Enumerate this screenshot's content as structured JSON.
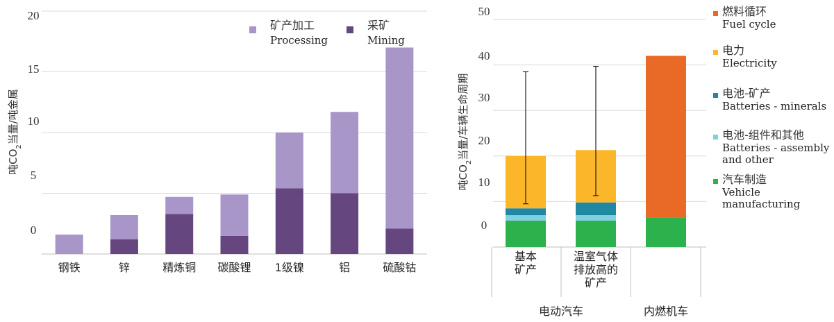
{
  "chart_data": [
    {
      "type": "bar",
      "stacked": true,
      "title": "",
      "xlabel": "",
      "ylabel": "吨CO2当量/吨金属",
      "ylabel_parts": {
        "pre": "吨CO",
        "sub": "2",
        "post": "当量/吨金属"
      },
      "yticks": [
        "20",
        "15",
        "10",
        "5",
        "0"
      ],
      "ylim": [
        0,
        20
      ],
      "grid": true,
      "legend_position": "top-right",
      "categories": [
        "钢铁",
        "锌",
        "精炼铜",
        "碳酸锂",
        "1级镍",
        "铝",
        "硫酸钴"
      ],
      "series": [
        {
          "name_zh": "采矿",
          "name_en": "Mining",
          "color": "#65467f",
          "values": [
            0,
            1.2,
            3.3,
            1.5,
            5.4,
            5.0,
            2.1
          ]
        },
        {
          "name_zh": "矿产加工",
          "name_en": "Processing",
          "color": "#a996c9",
          "values": [
            1.6,
            2.0,
            1.4,
            3.4,
            4.6,
            6.7,
            14.9
          ]
        }
      ],
      "legend_order": [
        1,
        0
      ]
    },
    {
      "type": "bar",
      "stacked": true,
      "title": "",
      "xlabel": "",
      "ylabel": "吨CO2当量/车辆生命周期",
      "ylabel_parts": {
        "pre": "吨CO",
        "sub": "2",
        "post": "当量/车辆生命周期"
      },
      "yticks": [
        "50",
        "40",
        "30",
        "20",
        "10",
        "0"
      ],
      "ylim": [
        0,
        50
      ],
      "grid": true,
      "legend_position": "right",
      "categories": [
        {
          "lines": [
            "基本",
            "矿产"
          ]
        },
        {
          "lines": [
            "温室气体",
            "排放高的",
            "矿产"
          ]
        },
        {
          "lines": []
        }
      ],
      "groups": [
        {
          "label": "电动汽车",
          "members": [
            0,
            1
          ]
        },
        {
          "label": "内燃机车",
          "members": [
            2
          ]
        }
      ],
      "series": [
        {
          "name_zh": "汽车制造",
          "name_en": [
            "Vehicle",
            "manufacturing"
          ],
          "color": "#2bb24c",
          "values": [
            5.8,
            5.8,
            6.5
          ]
        },
        {
          "name_zh": "电池-组件和其他",
          "name_en": [
            "Batteries - assembly",
            "and other"
          ],
          "color": "#7fd0e0",
          "values": [
            1.2,
            1.2,
            0
          ]
        },
        {
          "name_zh": "电池-矿产",
          "name_en": [
            "Batteries - minerals"
          ],
          "color": "#1f88a3",
          "values": [
            1.5,
            2.8,
            0
          ]
        },
        {
          "name_zh": "电力",
          "name_en": [
            "Electricity"
          ],
          "color": "#fbb62a",
          "values": [
            11.5,
            11.5,
            0
          ]
        },
        {
          "name_zh": "燃料循环",
          "name_en": [
            "Fuel cycle"
          ],
          "color": "#e86a26",
          "values": [
            0,
            0,
            35.5
          ]
        }
      ],
      "legend_order": [
        4,
        3,
        2,
        1,
        0
      ],
      "error_bars": [
        {
          "category": 0,
          "low": 9.5,
          "high": 38.5
        },
        {
          "category": 1,
          "low": 11.3,
          "high": 39.7
        }
      ]
    }
  ]
}
